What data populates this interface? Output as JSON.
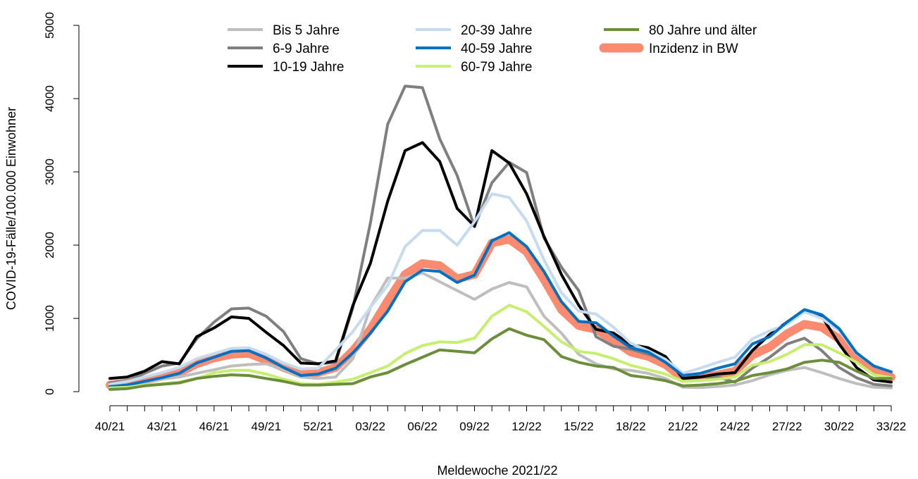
{
  "chart_data": {
    "type": "line",
    "title": "",
    "xlabel": "Meldewoche 2021/22",
    "ylabel": "COVID-19-Fälle/100.000 Einwohner",
    "ylim": [
      0,
      5000
    ],
    "yticks": [
      "0",
      "1000",
      "2000",
      "3000",
      "4000",
      "5000"
    ],
    "grid": false,
    "legend_position": "top",
    "x": [
      "40/21",
      "41/21",
      "42/21",
      "43/21",
      "44/21",
      "45/21",
      "46/21",
      "47/21",
      "48/21",
      "49/21",
      "50/21",
      "51/21",
      "52/21",
      "01/22",
      "02/22",
      "03/22",
      "04/22",
      "05/22",
      "06/22",
      "07/22",
      "08/22",
      "09/22",
      "10/22",
      "11/22",
      "12/22",
      "13/22",
      "14/22",
      "15/22",
      "16/22",
      "17/22",
      "18/22",
      "19/22",
      "20/22",
      "21/22",
      "22/22",
      "23/22",
      "24/22",
      "25/22",
      "26/22",
      "27/22",
      "28/22",
      "29/22",
      "30/22",
      "31/22",
      "32/22",
      "33/22"
    ],
    "xtick_labels": [
      "40/21",
      "43/21",
      "46/21",
      "49/21",
      "52/21",
      "03/22",
      "06/22",
      "09/22",
      "12/22",
      "15/22",
      "18/22",
      "21/22",
      "24/22",
      "27/22",
      "30/22",
      "33/22"
    ],
    "series": [
      {
        "name": "Bis 5 Jahre",
        "color": "#bebebe",
        "width": 4,
        "values": [
          80,
          90,
          130,
          170,
          200,
          250,
          300,
          350,
          370,
          380,
          300,
          200,
          180,
          200,
          450,
          1150,
          1550,
          1550,
          1620,
          1500,
          1380,
          1260,
          1400,
          1490,
          1430,
          1030,
          800,
          510,
          380,
          310,
          290,
          250,
          180,
          60,
          55,
          70,
          90,
          150,
          230,
          290,
          330,
          260,
          180,
          110,
          60,
          50
        ]
      },
      {
        "name": "6-9 Jahre",
        "color": "#7f7f7f",
        "width": 4,
        "values": [
          120,
          150,
          250,
          350,
          390,
          720,
          950,
          1130,
          1140,
          1030,
          820,
          450,
          380,
          400,
          1150,
          2300,
          3650,
          4170,
          4150,
          3450,
          2950,
          2250,
          2850,
          3130,
          2990,
          2100,
          1700,
          1380,
          750,
          620,
          580,
          510,
          440,
          240,
          200,
          200,
          130,
          320,
          470,
          650,
          730,
          560,
          330,
          190,
          100,
          80
        ]
      },
      {
        "name": "10-19 Jahre",
        "color": "#000000",
        "width": 4,
        "values": [
          180,
          200,
          280,
          410,
          380,
          750,
          870,
          1020,
          1000,
          810,
          630,
          390,
          380,
          420,
          1180,
          1750,
          2600,
          3290,
          3400,
          3140,
          2500,
          2260,
          3290,
          3120,
          2700,
          2120,
          1600,
          1180,
          850,
          800,
          640,
          600,
          480,
          180,
          200,
          240,
          260,
          560,
          780,
          950,
          1110,
          1030,
          650,
          330,
          160,
          130
        ]
      },
      {
        "name": "20-39 Jahre",
        "color": "#c6dbef",
        "width": 4,
        "values": [
          100,
          140,
          200,
          260,
          330,
          450,
          520,
          590,
          600,
          510,
          390,
          310,
          320,
          570,
          820,
          1150,
          1450,
          1980,
          2200,
          2200,
          2000,
          2320,
          2700,
          2650,
          2330,
          1800,
          1350,
          1100,
          1060,
          880,
          660,
          560,
          440,
          250,
          320,
          400,
          470,
          720,
          830,
          920,
          1090,
          1000,
          830,
          520,
          350,
          270
        ]
      },
      {
        "name": "40-59 Jahre",
        "color": "#0070c0",
        "width": 4,
        "values": [
          70,
          90,
          140,
          190,
          250,
          390,
          470,
          550,
          560,
          460,
          330,
          220,
          240,
          320,
          530,
          800,
          1100,
          1500,
          1660,
          1640,
          1490,
          1590,
          2060,
          2170,
          1980,
          1640,
          1230,
          960,
          940,
          760,
          600,
          540,
          400,
          220,
          250,
          320,
          380,
          650,
          750,
          950,
          1120,
          1050,
          860,
          530,
          350,
          270
        ]
      },
      {
        "name": "60-79 Jahre",
        "color": "#c6ef6f",
        "width": 4,
        "values": [
          50,
          60,
          90,
          110,
          130,
          180,
          260,
          290,
          290,
          240,
          170,
          110,
          100,
          130,
          170,
          260,
          350,
          520,
          630,
          680,
          670,
          730,
          1030,
          1180,
          1090,
          890,
          680,
          550,
          520,
          450,
          360,
          300,
          240,
          140,
          150,
          170,
          200,
          360,
          410,
          510,
          640,
          640,
          530,
          400,
          230,
          190
        ]
      },
      {
        "name": "80 Jahre und älter",
        "color": "#6b8e3a",
        "width": 4,
        "values": [
          30,
          40,
          80,
          100,
          120,
          180,
          210,
          230,
          220,
          180,
          140,
          90,
          90,
          100,
          110,
          200,
          260,
          370,
          470,
          570,
          550,
          530,
          720,
          860,
          770,
          710,
          480,
          400,
          350,
          330,
          220,
          190,
          150,
          80,
          90,
          110,
          140,
          220,
          260,
          310,
          400,
          430,
          400,
          280,
          180,
          180
        ]
      },
      {
        "name": "Inzidenz in BW",
        "color": "#fa8b70",
        "width": 12,
        "values": [
          90,
          120,
          160,
          210,
          260,
          380,
          460,
          510,
          520,
          430,
          330,
          240,
          260,
          330,
          560,
          850,
          1240,
          1600,
          1750,
          1720,
          1540,
          1600,
          2030,
          2080,
          1910,
          1530,
          1120,
          900,
          850,
          700,
          540,
          480,
          370,
          180,
          190,
          230,
          280,
          500,
          610,
          790,
          920,
          880,
          720,
          450,
          300,
          200
        ]
      }
    ]
  }
}
